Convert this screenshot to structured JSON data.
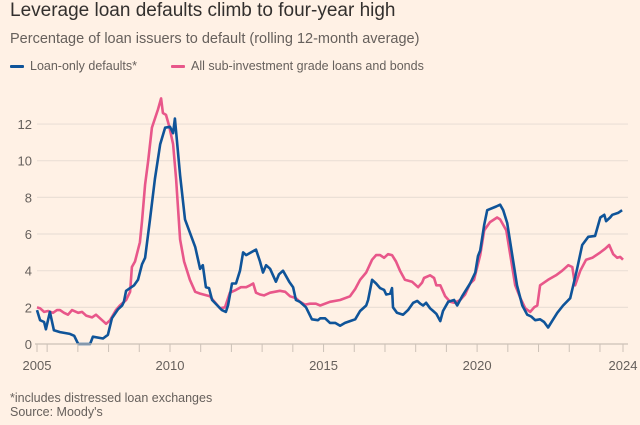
{
  "colors": {
    "background": "#fff1e5",
    "blue": "#0f5499",
    "pink": "#e8578a",
    "grid": "#ebe0d6",
    "axis": "#ccc1b7"
  },
  "chart_data": {
    "type": "line",
    "title": "Leverage loan defaults climb to four-year high",
    "subtitle": "Percentage of loan issuers to default (rolling 12-month average)",
    "xlabel": "",
    "ylabel": "",
    "xlim": [
      2005.67,
      2024.75
    ],
    "ylim": [
      0,
      13.5
    ],
    "grid": true,
    "legend_placement": "top-left",
    "yticks": [
      0,
      2,
      4,
      6,
      8,
      10,
      12
    ],
    "ytick_labels": [
      "0",
      "2",
      "4",
      "6",
      "8",
      "10",
      "12"
    ],
    "xtick_labels": [
      {
        "value": 2005.67,
        "label": "2005"
      },
      {
        "value": 2010,
        "label": "2010"
      },
      {
        "value": 2015,
        "label": "2015"
      },
      {
        "value": 2020,
        "label": "2020"
      },
      {
        "value": 2024.75,
        "label": "2024"
      }
    ],
    "minor_xticks": [
      2005.67,
      2006,
      2007,
      2008,
      2009,
      2010,
      2011,
      2012,
      2013,
      2014,
      2015,
      2016,
      2017,
      2018,
      2019,
      2020,
      2021,
      2022,
      2023,
      2024,
      2024.75
    ],
    "series": [
      {
        "name": "Loan-only defaults*",
        "color": "#0f5499",
        "points": [
          [
            2005.67,
            1.85
          ],
          [
            2005.77,
            1.3
          ],
          [
            2005.9,
            1.2
          ],
          [
            2005.96,
            0.8
          ],
          [
            2006.09,
            1.75
          ],
          [
            2006.22,
            0.75
          ],
          [
            2006.42,
            0.65
          ],
          [
            2006.74,
            0.55
          ],
          [
            2006.88,
            0.45
          ],
          [
            2007.01,
            0
          ],
          [
            2007.4,
            0
          ],
          [
            2007.49,
            0.4
          ],
          [
            2007.82,
            0.3
          ],
          [
            2007.98,
            0.5
          ],
          [
            2008.11,
            1.4
          ],
          [
            2008.31,
            1.9
          ],
          [
            2008.44,
            2.1
          ],
          [
            2008.5,
            2.3
          ],
          [
            2008.57,
            2.9
          ],
          [
            2008.7,
            3.05
          ],
          [
            2008.83,
            3.2
          ],
          [
            2008.96,
            3.5
          ],
          [
            2009.09,
            4.35
          ],
          [
            2009.19,
            4.7
          ],
          [
            2009.35,
            6.8
          ],
          [
            2009.51,
            9.0
          ],
          [
            2009.68,
            10.9
          ],
          [
            2009.84,
            11.8
          ],
          [
            2010.0,
            11.85
          ],
          [
            2010.1,
            11.5
          ],
          [
            2010.16,
            12.3
          ],
          [
            2010.33,
            9.2
          ],
          [
            2010.49,
            6.8
          ],
          [
            2010.82,
            5.3
          ],
          [
            2010.98,
            4.1
          ],
          [
            2011.07,
            4.3
          ],
          [
            2011.17,
            3.1
          ],
          [
            2011.27,
            3.05
          ],
          [
            2011.37,
            2.4
          ],
          [
            2011.69,
            1.85
          ],
          [
            2011.82,
            1.75
          ],
          [
            2011.89,
            2.1
          ],
          [
            2012.02,
            3.3
          ],
          [
            2012.15,
            3.3
          ],
          [
            2012.28,
            4.0
          ],
          [
            2012.38,
            5.0
          ],
          [
            2012.48,
            4.85
          ],
          [
            2012.8,
            5.15
          ],
          [
            2012.93,
            4.5
          ],
          [
            2013.03,
            3.9
          ],
          [
            2013.13,
            4.3
          ],
          [
            2013.26,
            4.1
          ],
          [
            2013.45,
            3.4
          ],
          [
            2013.55,
            3.8
          ],
          [
            2013.68,
            4.0
          ],
          [
            2013.88,
            3.4
          ],
          [
            2014.01,
            3.1
          ],
          [
            2014.1,
            2.4
          ],
          [
            2014.23,
            2.3
          ],
          [
            2014.43,
            2.0
          ],
          [
            2014.62,
            1.35
          ],
          [
            2014.82,
            1.3
          ],
          [
            2014.89,
            1.4
          ],
          [
            2015.05,
            1.4
          ],
          [
            2015.21,
            1.15
          ],
          [
            2015.38,
            1.15
          ],
          [
            2015.54,
            1.0
          ],
          [
            2015.7,
            1.15
          ],
          [
            2015.86,
            1.25
          ],
          [
            2016.03,
            1.35
          ],
          [
            2016.19,
            1.8
          ],
          [
            2016.39,
            2.1
          ],
          [
            2016.45,
            2.4
          ],
          [
            2016.58,
            3.5
          ],
          [
            2016.71,
            3.3
          ],
          [
            2016.84,
            3.05
          ],
          [
            2016.97,
            2.95
          ],
          [
            2017.04,
            2.7
          ],
          [
            2017.17,
            2.75
          ],
          [
            2017.23,
            3.05
          ],
          [
            2017.26,
            2.0
          ],
          [
            2017.39,
            1.7
          ],
          [
            2017.59,
            1.6
          ],
          [
            2017.75,
            1.85
          ],
          [
            2017.92,
            2.25
          ],
          [
            2018.05,
            2.35
          ],
          [
            2018.15,
            2.2
          ],
          [
            2018.24,
            2.1
          ],
          [
            2018.34,
            2.25
          ],
          [
            2018.47,
            1.95
          ],
          [
            2018.57,
            1.8
          ],
          [
            2018.67,
            1.65
          ],
          [
            2018.8,
            1.25
          ],
          [
            2018.89,
            1.8
          ],
          [
            2019.06,
            2.3
          ],
          [
            2019.25,
            2.4
          ],
          [
            2019.35,
            2.1
          ],
          [
            2019.51,
            2.6
          ],
          [
            2019.77,
            3.3
          ],
          [
            2019.94,
            3.9
          ],
          [
            2020.03,
            4.8
          ],
          [
            2020.1,
            5.1
          ],
          [
            2020.23,
            6.5
          ],
          [
            2020.33,
            7.3
          ],
          [
            2020.62,
            7.5
          ],
          [
            2020.75,
            7.6
          ],
          [
            2020.85,
            7.3
          ],
          [
            2020.98,
            6.6
          ],
          [
            2021.14,
            4.9
          ],
          [
            2021.3,
            3.2
          ],
          [
            2021.47,
            2.1
          ],
          [
            2021.63,
            1.6
          ],
          [
            2021.76,
            1.5
          ],
          [
            2021.89,
            1.3
          ],
          [
            2022.05,
            1.35
          ],
          [
            2022.18,
            1.2
          ],
          [
            2022.31,
            0.9
          ],
          [
            2022.44,
            1.25
          ],
          [
            2022.61,
            1.7
          ],
          [
            2022.8,
            2.1
          ],
          [
            2023.03,
            2.5
          ],
          [
            2023.23,
            3.9
          ],
          [
            2023.42,
            5.4
          ],
          [
            2023.62,
            5.85
          ],
          [
            2023.84,
            5.9
          ],
          [
            2024.01,
            6.9
          ],
          [
            2024.14,
            7.05
          ],
          [
            2024.2,
            6.7
          ],
          [
            2024.33,
            6.9
          ],
          [
            2024.4,
            7.05
          ],
          [
            2024.59,
            7.15
          ],
          [
            2024.72,
            7.3
          ]
        ]
      },
      {
        "name": "All sub-investment grade loans and bonds",
        "color": "#e8578a",
        "points": [
          [
            2005.67,
            2.0
          ],
          [
            2005.77,
            1.95
          ],
          [
            2005.9,
            1.75
          ],
          [
            2006.03,
            1.8
          ],
          [
            2006.19,
            1.7
          ],
          [
            2006.32,
            1.85
          ],
          [
            2006.42,
            1.85
          ],
          [
            2006.55,
            1.7
          ],
          [
            2006.68,
            1.6
          ],
          [
            2006.81,
            1.85
          ],
          [
            2007.01,
            1.7
          ],
          [
            2007.14,
            1.75
          ],
          [
            2007.27,
            1.55
          ],
          [
            2007.46,
            1.45
          ],
          [
            2007.59,
            1.6
          ],
          [
            2007.79,
            1.3
          ],
          [
            2007.92,
            1.1
          ],
          [
            2008.05,
            1.3
          ],
          [
            2008.24,
            1.85
          ],
          [
            2008.37,
            2.1
          ],
          [
            2008.57,
            2.4
          ],
          [
            2008.7,
            2.85
          ],
          [
            2008.76,
            4.2
          ],
          [
            2008.86,
            4.5
          ],
          [
            2009.02,
            5.55
          ],
          [
            2009.09,
            6.7
          ],
          [
            2009.19,
            8.7
          ],
          [
            2009.29,
            10.0
          ],
          [
            2009.41,
            11.8
          ],
          [
            2009.61,
            12.8
          ],
          [
            2009.71,
            13.4
          ],
          [
            2009.77,
            12.6
          ],
          [
            2009.87,
            12.5
          ],
          [
            2009.97,
            11.9
          ],
          [
            2010.1,
            10.9
          ],
          [
            2010.2,
            9.0
          ],
          [
            2010.33,
            5.7
          ],
          [
            2010.46,
            4.5
          ],
          [
            2010.65,
            3.5
          ],
          [
            2010.82,
            2.85
          ],
          [
            2010.98,
            2.75
          ],
          [
            2011.3,
            2.6
          ],
          [
            2011.63,
            1.95
          ],
          [
            2011.79,
            2.0
          ],
          [
            2011.95,
            2.8
          ],
          [
            2012.15,
            2.95
          ],
          [
            2012.31,
            3.1
          ],
          [
            2012.48,
            3.1
          ],
          [
            2012.61,
            3.2
          ],
          [
            2012.71,
            3.3
          ],
          [
            2012.8,
            2.8
          ],
          [
            2012.93,
            2.7
          ],
          [
            2013.06,
            2.65
          ],
          [
            2013.26,
            2.8
          ],
          [
            2013.58,
            2.9
          ],
          [
            2013.75,
            2.85
          ],
          [
            2013.91,
            2.6
          ],
          [
            2014.1,
            2.5
          ],
          [
            2014.23,
            2.3
          ],
          [
            2014.4,
            2.15
          ],
          [
            2014.56,
            2.2
          ],
          [
            2014.75,
            2.2
          ],
          [
            2014.89,
            2.1
          ],
          [
            2015.21,
            2.3
          ],
          [
            2015.54,
            2.4
          ],
          [
            2015.86,
            2.6
          ],
          [
            2016.03,
            3.0
          ],
          [
            2016.19,
            3.5
          ],
          [
            2016.39,
            3.9
          ],
          [
            2016.58,
            4.6
          ],
          [
            2016.71,
            4.85
          ],
          [
            2016.84,
            4.85
          ],
          [
            2016.97,
            4.7
          ],
          [
            2017.1,
            4.9
          ],
          [
            2017.23,
            4.85
          ],
          [
            2017.36,
            4.5
          ],
          [
            2017.49,
            4.0
          ],
          [
            2017.65,
            3.5
          ],
          [
            2017.88,
            3.4
          ],
          [
            2018.08,
            3.1
          ],
          [
            2018.21,
            3.35
          ],
          [
            2018.27,
            3.6
          ],
          [
            2018.47,
            3.75
          ],
          [
            2018.6,
            3.6
          ],
          [
            2018.67,
            3.2
          ],
          [
            2018.8,
            3.2
          ],
          [
            2018.96,
            2.6
          ],
          [
            2019.12,
            2.3
          ],
          [
            2019.25,
            2.25
          ],
          [
            2019.45,
            2.4
          ],
          [
            2019.61,
            2.7
          ],
          [
            2019.77,
            3.3
          ],
          [
            2019.9,
            3.5
          ],
          [
            2020.1,
            4.85
          ],
          [
            2020.23,
            6.2
          ],
          [
            2020.42,
            6.65
          ],
          [
            2020.65,
            6.9
          ],
          [
            2020.75,
            6.8
          ],
          [
            2020.95,
            6.2
          ],
          [
            2021.08,
            4.85
          ],
          [
            2021.24,
            3.2
          ],
          [
            2021.41,
            2.5
          ],
          [
            2021.57,
            1.95
          ],
          [
            2021.73,
            1.75
          ],
          [
            2021.86,
            2.0
          ],
          [
            2021.96,
            2.1
          ],
          [
            2022.05,
            3.2
          ],
          [
            2022.31,
            3.5
          ],
          [
            2022.57,
            3.75
          ],
          [
            2022.77,
            4.0
          ],
          [
            2022.97,
            4.3
          ],
          [
            2023.1,
            4.2
          ],
          [
            2023.19,
            3.2
          ],
          [
            2023.36,
            4.0
          ],
          [
            2023.55,
            4.6
          ],
          [
            2023.75,
            4.7
          ],
          [
            2024.01,
            5.0
          ],
          [
            2024.17,
            5.2
          ],
          [
            2024.3,
            5.4
          ],
          [
            2024.43,
            4.9
          ],
          [
            2024.56,
            4.7
          ],
          [
            2024.66,
            4.75
          ],
          [
            2024.75,
            4.6
          ]
        ]
      }
    ],
    "footnotes": [
      "*includes distressed loan exchanges",
      "Source: Moody's"
    ]
  }
}
